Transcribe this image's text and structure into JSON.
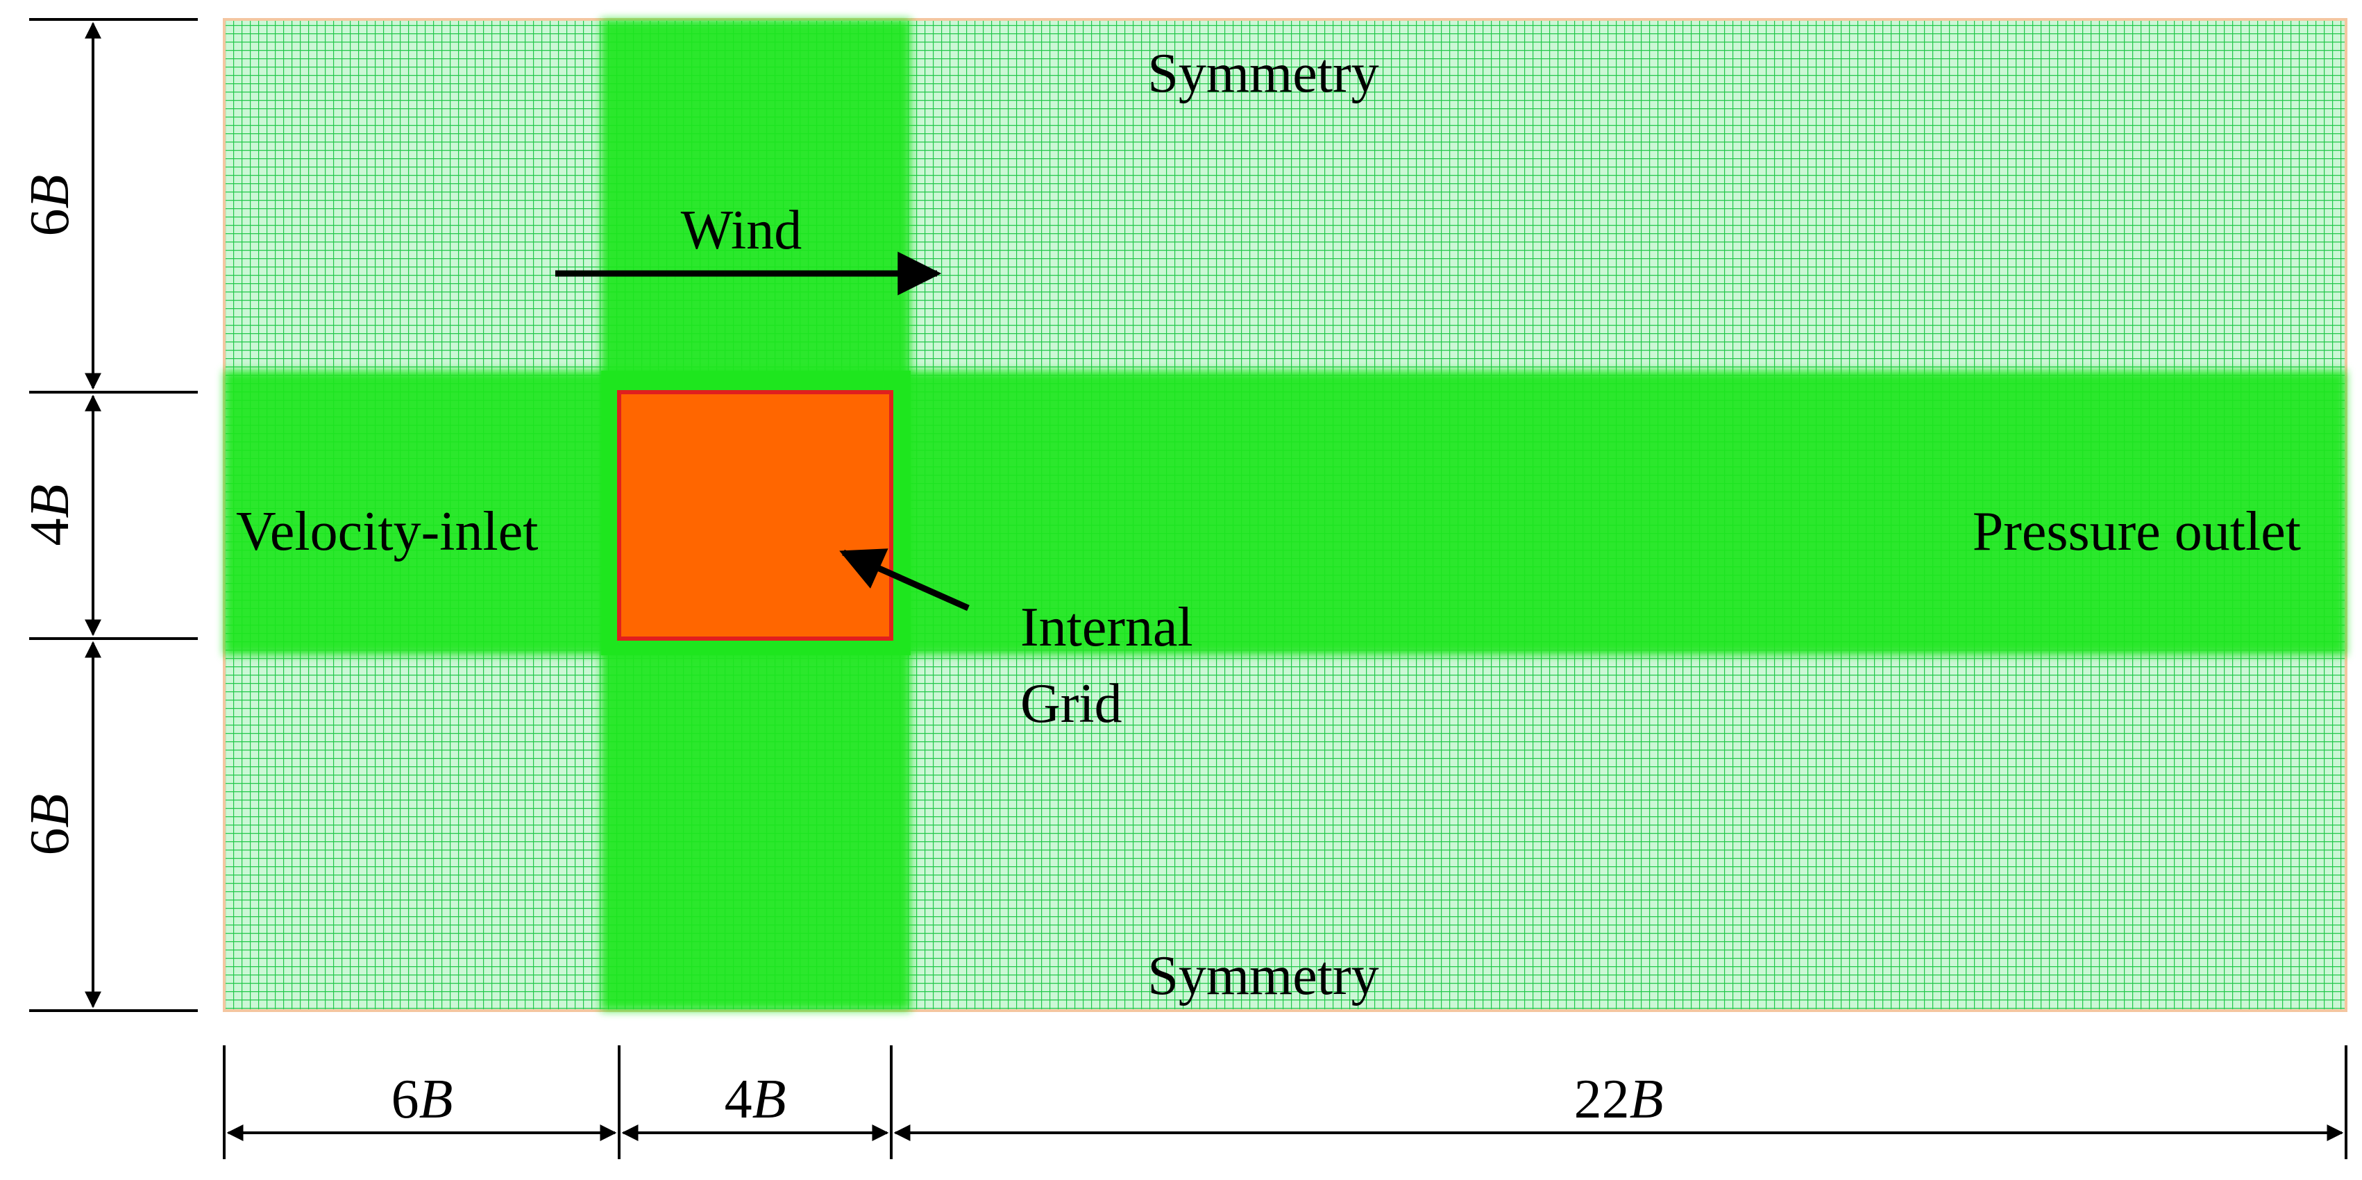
{
  "labels": {
    "top_boundary": "Symmetry",
    "bottom_boundary": "Symmetry",
    "inlet": "Velocity-inlet",
    "outlet": "Pressure outlet",
    "wind": "Wind",
    "internal_grid_line1": "Internal",
    "internal_grid_line2": "Grid"
  },
  "dimensions": {
    "vertical": [
      {
        "num": "6",
        "var": "B"
      },
      {
        "num": "4",
        "var": "B"
      },
      {
        "num": "6",
        "var": "B"
      }
    ],
    "horizontal": [
      {
        "num": "6",
        "var": "B"
      },
      {
        "num": "4",
        "var": "B"
      },
      {
        "num": "22",
        "var": "B"
      }
    ]
  },
  "colors": {
    "mesh_background": "#ccf7d6",
    "mesh_line": "#22c84a",
    "refined_zone": "#1ee61e",
    "building": "#ff6600",
    "building_border": "#e0201e",
    "arrow": "#000000"
  }
}
